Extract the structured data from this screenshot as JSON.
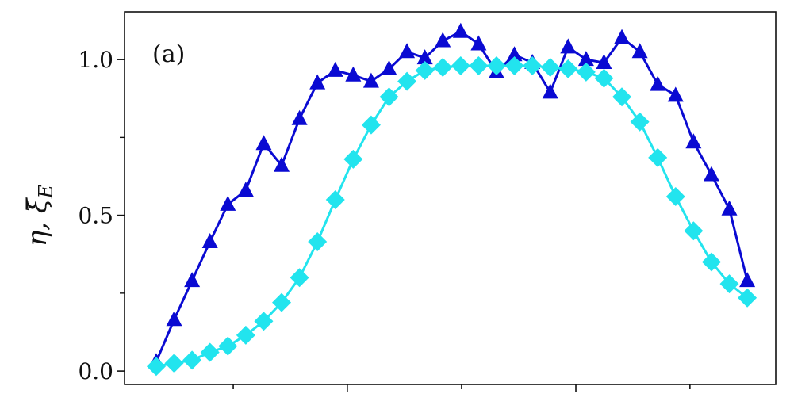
{
  "chart_data": {
    "type": "line",
    "annotation": "(a)",
    "ylabel": "η, ξ̄",
    "ylabel_subscript": "E",
    "x": [
      0,
      1,
      2,
      3,
      4,
      5,
      6,
      7,
      8,
      9,
      10,
      11,
      12,
      13,
      14,
      15,
      16,
      17,
      18,
      19,
      20,
      21,
      22,
      23,
      24,
      25,
      26,
      27,
      28,
      29,
      30,
      31,
      32,
      33
    ],
    "series": [
      {
        "color": "#0a0ad2",
        "marker": "triangle",
        "values": [
          0.03,
          0.165,
          0.29,
          0.415,
          0.535,
          0.58,
          0.73,
          0.66,
          0.81,
          0.925,
          0.965,
          0.95,
          0.93,
          0.97,
          1.025,
          1.005,
          1.06,
          1.09,
          1.05,
          0.96,
          1.015,
          0.99,
          0.895,
          1.04,
          1.0,
          0.99,
          1.07,
          1.025,
          0.92,
          0.885,
          0.735,
          0.63,
          0.52,
          0.29
        ]
      },
      {
        "color": "#22e4ee",
        "marker": "diamond",
        "values": [
          0.015,
          0.025,
          0.035,
          0.06,
          0.08,
          0.115,
          0.16,
          0.22,
          0.3,
          0.415,
          0.55,
          0.68,
          0.79,
          0.88,
          0.93,
          0.965,
          0.975,
          0.98,
          0.98,
          0.98,
          0.98,
          0.98,
          0.975,
          0.97,
          0.96,
          0.94,
          0.88,
          0.8,
          0.685,
          0.56,
          0.45,
          0.35,
          0.28,
          0.235
        ]
      }
    ],
    "xlim": [
      -1.77,
      34.59
    ],
    "xticks": [
      4.3,
      10.67,
      17.05,
      23.43,
      29.8
    ],
    "xmajor": [
      false,
      true,
      false,
      true,
      false
    ],
    "ylim": [
      -0.043,
      1.153
    ],
    "yticks": [
      {
        "value": 0,
        "label": "0.0"
      },
      {
        "value": 0.5,
        "label": "0.5"
      },
      {
        "value": 1,
        "label": "1.0"
      }
    ],
    "yminorticks": [
      0.25,
      0.75
    ]
  }
}
